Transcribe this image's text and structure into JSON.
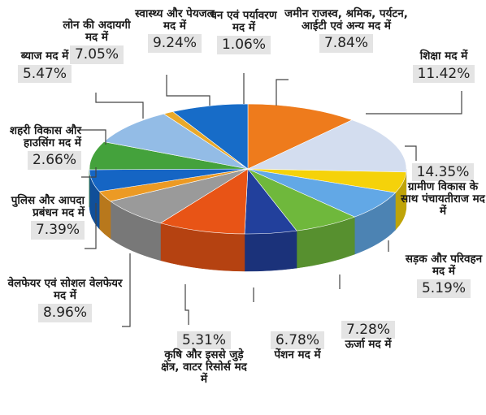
{
  "chart_data": {
    "type": "pie",
    "slices": [
      {
        "label": "शिक्षा मद में",
        "value": 11.42,
        "value_text": "11.42%",
        "color": "#ee7b1c"
      },
      {
        "label": "ग्रामीण विकास के साथ पंचायतीराज मद में",
        "value": 14.35,
        "value_text": "14.35%",
        "color": "#d3ddef"
      },
      {
        "label": "सड़क और परिवहन मद में",
        "value": 5.19,
        "value_text": "5.19%",
        "color": "#f5d20a"
      },
      {
        "label": "ऊर्जा मद में",
        "value": 7.28,
        "value_text": "7.28%",
        "color": "#62a8e6"
      },
      {
        "label": "पेंशन मद में",
        "value": 6.78,
        "value_text": "6.78%",
        "color": "#6fb83c"
      },
      {
        "label": "कृषि और इससे जुड़े क्षेत्र, वाटर रिसोर्स मद में",
        "value": 5.31,
        "value_text": "5.31%",
        "color": "#22409c"
      },
      {
        "label": "वेलफेयर एवं सोशल वेलफेयर मद में",
        "value": 8.96,
        "value_text": "8.96%",
        "color": "#e85416"
      },
      {
        "label": "पुलिस और आपदा प्रबंधन मद में",
        "value": 7.39,
        "value_text": "7.39%",
        "color": "#9a9a9a"
      },
      {
        "label": "शहरी विकास और हाउसिंग मद में",
        "value": 2.66,
        "value_text": "2.66%",
        "color": "#ec9a24"
      },
      {
        "label": "ब्याज मद में",
        "value": 5.47,
        "value_text": "5.47%",
        "color": "#1565c4"
      },
      {
        "label": "लोन की अदायगी मद में",
        "value": 7.05,
        "value_text": "7.05%",
        "color": "#44a23c"
      },
      {
        "label": "स्वास्थ्य और पेयजल मद में",
        "value": 9.24,
        "value_text": "9.24%",
        "color": "#93bce6"
      },
      {
        "label": "वन एवं पर्यावरण मद में",
        "value": 1.06,
        "value_text": "1.06%",
        "color": "#e9a92a"
      },
      {
        "label": "जमीन राजस्व, श्रमिक, पर्यटन, आईटी एवं अन्य मद में",
        "value": 7.84,
        "value_text": "7.84%",
        "color": "#176cc8"
      }
    ]
  }
}
